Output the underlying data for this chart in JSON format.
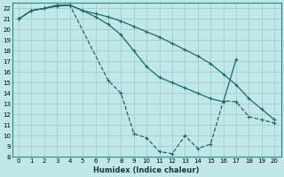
{
  "xlabel": "Humidex (Indice chaleur)",
  "ylabel": "",
  "bg_color": "#c0e8e8",
  "grid_color": "#a8d0d0",
  "line_color": "#1a6b6b",
  "xlim": [
    -0.5,
    20.5
  ],
  "ylim": [
    8,
    22.5
  ],
  "xticks": [
    0,
    1,
    2,
    3,
    4,
    5,
    6,
    7,
    8,
    9,
    10,
    11,
    12,
    13,
    14,
    15,
    16,
    17,
    18,
    19,
    20
  ],
  "yticks": [
    8,
    9,
    10,
    11,
    12,
    13,
    14,
    15,
    16,
    17,
    18,
    19,
    20,
    21,
    22
  ],
  "series": [
    {
      "x": [
        0,
        1,
        2,
        3,
        4,
        5,
        6,
        7,
        8,
        9,
        10,
        11,
        12,
        13,
        14,
        15,
        16,
        17,
        18,
        19,
        20
      ],
      "y": [
        21.0,
        21.8,
        22.0,
        22.2,
        22.3,
        21.8,
        21.5,
        21.2,
        20.8,
        20.3,
        19.8,
        19.3,
        18.7,
        18.1,
        17.5,
        16.8,
        15.8,
        14.8,
        13.5,
        12.5,
        11.5
      ],
      "style": "-",
      "marker": "+"
    },
    {
      "x": [
        0,
        1,
        2,
        3,
        4,
        5,
        6,
        7,
        8,
        9,
        10,
        11,
        12,
        13,
        14,
        15,
        16,
        17
      ],
      "y": [
        21.0,
        21.8,
        22.0,
        22.3,
        22.3,
        21.8,
        21.2,
        20.5,
        19.5,
        18.0,
        16.5,
        15.5,
        15.0,
        14.5,
        14.0,
        13.5,
        13.2,
        17.2
      ],
      "style": "-",
      "marker": "+"
    },
    {
      "x": [
        0,
        1,
        2,
        3,
        4,
        7,
        8,
        9,
        10,
        11,
        12,
        13,
        14,
        15,
        16,
        17,
        18,
        19,
        20
      ],
      "y": [
        21.0,
        21.8,
        22.0,
        22.3,
        22.3,
        15.2,
        14.0,
        10.2,
        9.8,
        8.5,
        8.3,
        10.0,
        8.8,
        9.2,
        13.3,
        13.2,
        11.8,
        11.5,
        11.2
      ],
      "style": "--",
      "marker": "+"
    }
  ]
}
